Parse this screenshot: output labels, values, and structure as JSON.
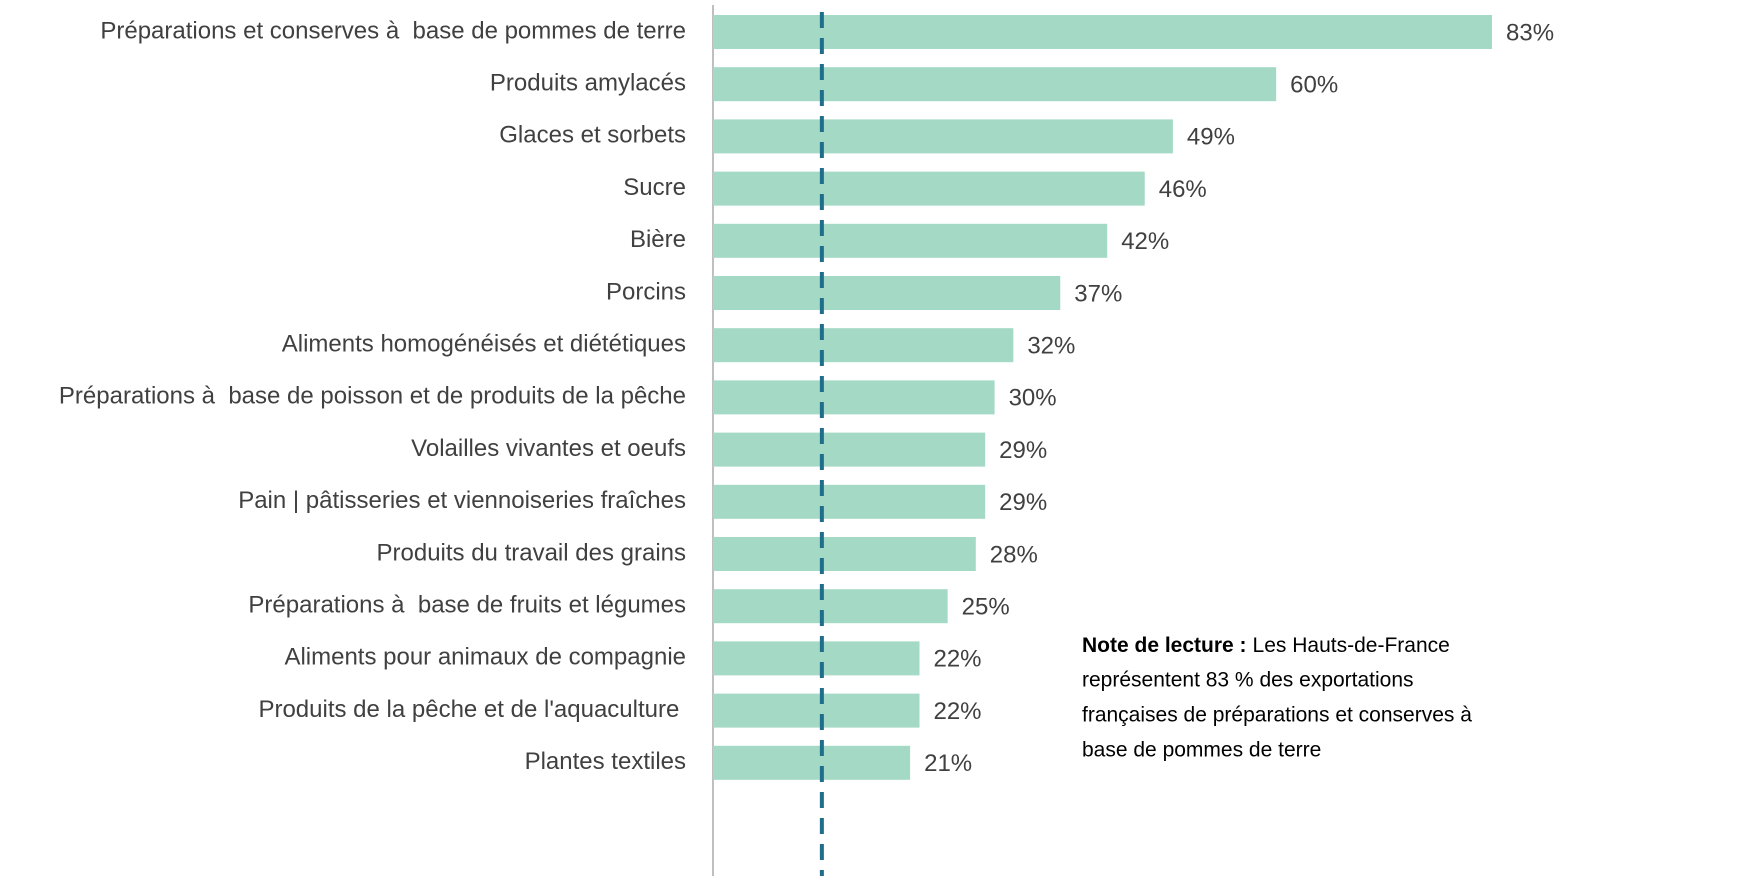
{
  "chart_data": {
    "type": "hbar",
    "categories": [
      "Préparations et conserves à  base de pommes de terre",
      "Produits amylacés",
      "Glaces et sorbets",
      "Sucre",
      "Bière",
      "Porcins",
      "Aliments homogénéisés et diététiques",
      "Préparations à  base de poisson et de produits de la pêche",
      "Volailles vivantes et oeufs",
      "Pain | pâtisseries et viennoiseries fraîches",
      "Produits du travail des grains",
      "Préparations à  base de fruits et légumes",
      "Aliments pour animaux de compagnie",
      "Produits de la pêche et de l'aquaculture ",
      "Plantes textiles"
    ],
    "values": [
      83,
      60,
      49,
      46,
      42,
      37,
      32,
      30,
      29,
      29,
      28,
      25,
      22,
      22,
      21
    ],
    "value_labels": [
      "83%",
      "60%",
      "49%",
      "46%",
      "42%",
      "37%",
      "32%",
      "30%",
      "29%",
      "29%",
      "28%",
      "25%",
      "22%",
      "22%",
      "21%"
    ],
    "color": "#a3d9c5",
    "reference_line": {
      "value": 11.6,
      "color": "#1f6e8c"
    },
    "xlim": [
      0,
      85
    ],
    "note": {
      "label": "Note de lecture :",
      "lines": [
        "Les Hauts-de-France",
        "représentent 83 % des exportations",
        "françaises de préparations et conserves à",
        "base de pommes de terre"
      ]
    }
  }
}
